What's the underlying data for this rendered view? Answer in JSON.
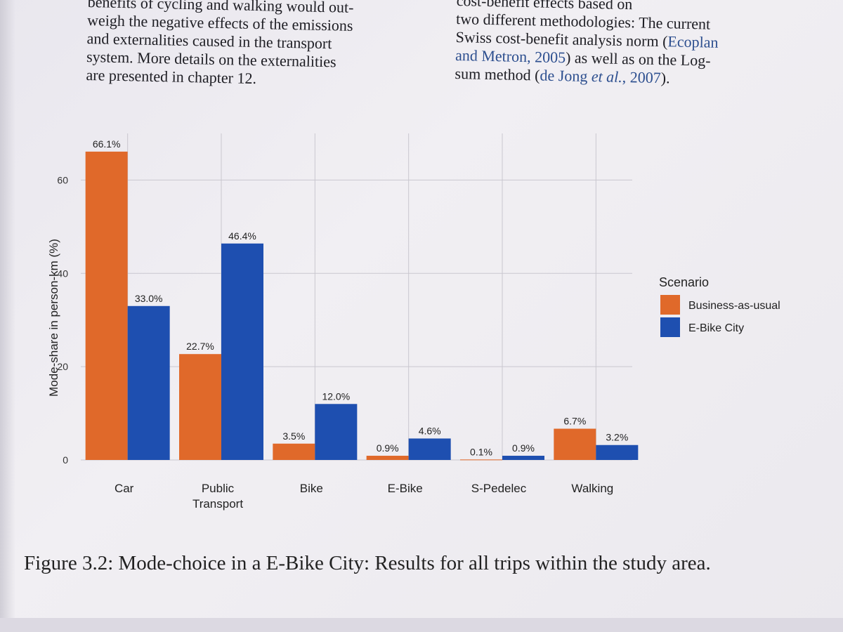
{
  "text": {
    "left_column": [
      "benefits of cycling and walking would out-",
      "weigh the negative effects of the emissions",
      "and externalities caused in the transport",
      "system. More details on the externalities",
      "are presented in chapter 12."
    ],
    "right_column": {
      "line0": "cost-benefit effects based on",
      "line1": "two different methodologies: The current",
      "line2": "Swiss cost-benefit analysis norm (",
      "cite1a": "Ecoplan",
      "cite1b": "and Metron,",
      "cite1_year": "2005",
      "line3_mid": ") as well as on the Log-",
      "line4_start": "sum method (",
      "cite2": "de Jong",
      "cite2_etal": "et al.",
      "cite2_sep": ", ",
      "cite2_year": "2007",
      "line4_end": ")."
    }
  },
  "caption": "Figure 3.2: Mode-choice in a E-Bike City: Results for all trips within the study area.",
  "colors": {
    "business_as_usual": "#e0692a",
    "ebike_city": "#1e4fb0",
    "grid": "#c9c7cf"
  },
  "chart_data": {
    "type": "bar",
    "title": "",
    "xlabel": "",
    "ylabel": "Mode-share in person-km (%)",
    "ylim": [
      0,
      70
    ],
    "yticks": [
      "0",
      "20",
      "40",
      "60"
    ],
    "categories": [
      "Car",
      "Public Transport",
      "Bike",
      "E-Bike",
      "S-Pedelec",
      "Walking"
    ],
    "category_lines": [
      [
        "Car"
      ],
      [
        "Public",
        "Transport"
      ],
      [
        "Bike"
      ],
      [
        "E-Bike"
      ],
      [
        "S-Pedelec"
      ],
      [
        "Walking"
      ]
    ],
    "series": [
      {
        "name": "Business-as-usual",
        "values": [
          66.1,
          22.7,
          3.5,
          0.9,
          0.1,
          6.7
        ],
        "labels": [
          "66.1%",
          "22.7%",
          "3.5%",
          "0.9%",
          "0.1%",
          "6.7%"
        ]
      },
      {
        "name": "E-Bike City",
        "values": [
          33.0,
          46.4,
          12.0,
          4.6,
          0.9,
          3.2
        ],
        "labels": [
          "33.0%",
          "46.4%",
          "12.0%",
          "4.6%",
          "0.9%",
          "3.2%"
        ]
      }
    ],
    "legend": {
      "title": "Scenario",
      "position": "right"
    }
  }
}
